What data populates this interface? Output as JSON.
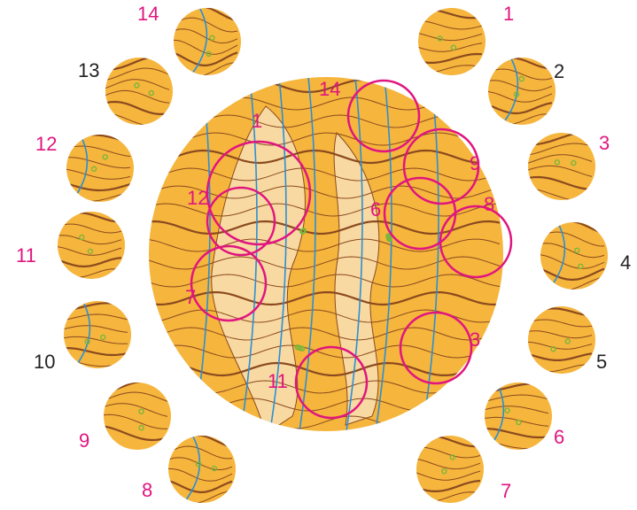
{
  "colors": {
    "terrain": "#f6b53c",
    "open_land": "#f9d9a2",
    "contour": "#8b4a1f",
    "water": "#2a8fd6",
    "control_circle": "#e0157f",
    "vegetation_dot": "#79b63b",
    "label_accent": "#e0157f",
    "label_plain": "#222222"
  },
  "main_map": {
    "icon": "orienteering-map-icon",
    "control_circles": [
      {
        "number": "1",
        "color": "#e0157f"
      },
      {
        "number": "3",
        "color": "#e0157f"
      },
      {
        "number": "6",
        "color": "#e0157f"
      },
      {
        "number": "7",
        "color": "#e0157f"
      },
      {
        "number": "8",
        "color": "#e0157f"
      },
      {
        "number": "9",
        "color": "#e0157f"
      },
      {
        "number": "11",
        "color": "#e0157f"
      },
      {
        "number": "12",
        "color": "#e0157f"
      },
      {
        "number": "14",
        "color": "#e0157f"
      }
    ]
  },
  "thumbnails": [
    {
      "number": "1",
      "highlighted": true
    },
    {
      "number": "2",
      "highlighted": false
    },
    {
      "number": "3",
      "highlighted": true
    },
    {
      "number": "4",
      "highlighted": false
    },
    {
      "number": "5",
      "highlighted": false
    },
    {
      "number": "6",
      "highlighted": true
    },
    {
      "number": "7",
      "highlighted": true
    },
    {
      "number": "8",
      "highlighted": true
    },
    {
      "number": "9",
      "highlighted": true
    },
    {
      "number": "10",
      "highlighted": false
    },
    {
      "number": "11",
      "highlighted": true
    },
    {
      "number": "12",
      "highlighted": true
    },
    {
      "number": "13",
      "highlighted": false
    },
    {
      "number": "14",
      "highlighted": true
    }
  ]
}
